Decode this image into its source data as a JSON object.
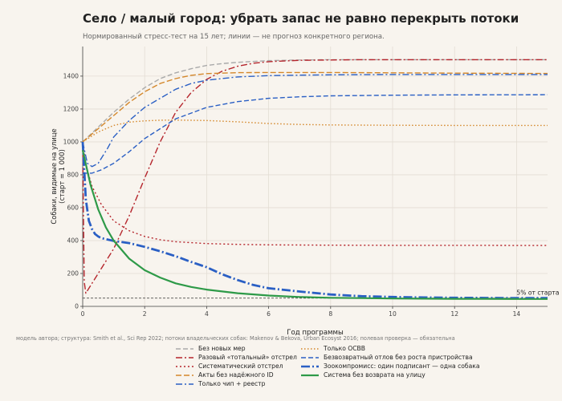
{
  "title": "Село / малый город: убрать запас не равно перекрыть потоки",
  "subtitle": "Нормированный стресс-тест на 15 лет; линии — не прогноз конкретного региона.",
  "footnote": "модель автора; структура: Smith et al., Sci Rep 2022; потоки владельческих собак: Makenov & Bekova, Urban Ecosyst 2016; полевая проверка — обязательна",
  "chart_data": {
    "type": "line",
    "xlabel": "Год программы",
    "ylabel": "Собаки, видимые на улице\n(старт = 1 000)",
    "xlim": [
      0,
      15
    ],
    "ylim": [
      0,
      1580
    ],
    "xticks": [
      0,
      2,
      4,
      6,
      8,
      10,
      12,
      14
    ],
    "yticks": [
      0,
      200,
      400,
      600,
      800,
      1000,
      1200,
      1400
    ],
    "grid": true,
    "annotations": [
      {
        "text": "5% от старта",
        "x": 14,
        "y": 50,
        "kind": "hline"
      }
    ],
    "series": [
      {
        "name": "Без новых мер",
        "color": "#aaaaaa",
        "dash": "6,3",
        "width": 1.4,
        "x": [
          0,
          0.5,
          1,
          1.5,
          2,
          2.5,
          3,
          3.5,
          4,
          4.5,
          5,
          6,
          7,
          8,
          9,
          10,
          11,
          12,
          13,
          14,
          15
        ],
        "y": [
          1000,
          1090,
          1180,
          1260,
          1330,
          1385,
          1420,
          1445,
          1465,
          1476,
          1484,
          1494,
          1498,
          1500,
          1500,
          1500,
          1500,
          1500,
          1500,
          1500,
          1500
        ]
      },
      {
        "name": "Разовый «тотальный» отстрел",
        "color": "#b5252c",
        "dash": "8,3,2,3",
        "width": 1.4,
        "x": [
          0,
          0.02,
          0.05,
          0.1,
          0.5,
          1,
          1.5,
          2,
          2.5,
          3,
          3.5,
          4,
          4.5,
          5,
          5.5,
          6,
          7,
          8,
          9,
          10,
          11,
          12,
          13,
          14,
          15
        ],
        "y": [
          1000,
          600,
          150,
          80,
          200,
          350,
          550,
          780,
          1000,
          1180,
          1300,
          1380,
          1430,
          1460,
          1478,
          1488,
          1496,
          1498,
          1500,
          1500,
          1500,
          1500,
          1500,
          1500,
          1500
        ]
      },
      {
        "name": "Систематический отстрел",
        "color": "#b5252c",
        "dash": "2,3",
        "width": 1.4,
        "x": [
          0,
          0.1,
          0.3,
          0.6,
          1,
          1.5,
          2,
          2.5,
          3,
          4,
          5,
          6,
          7,
          8,
          10,
          12,
          15
        ],
        "y": [
          1000,
          860,
          730,
          620,
          520,
          460,
          425,
          405,
          393,
          382,
          377,
          374,
          373,
          372,
          371,
          371,
          370
        ]
      },
      {
        "name": "Акты без надёжного ID",
        "color": "#d4872a",
        "dash": "7,3",
        "width": 1.4,
        "x": [
          0,
          0.5,
          1,
          1.5,
          2,
          2.5,
          3,
          3.5,
          4,
          5,
          6,
          7,
          8,
          10,
          12,
          15
        ],
        "y": [
          1000,
          1080,
          1160,
          1240,
          1305,
          1355,
          1385,
          1405,
          1415,
          1421,
          1422,
          1422,
          1422,
          1420,
          1418,
          1416
        ]
      },
      {
        "name": "Только чип + реестр",
        "color": "#2a5fc4",
        "dash": "8,3,2,3",
        "width": 1.4,
        "x": [
          0,
          0.15,
          0.3,
          0.5,
          0.8,
          1,
          1.5,
          2,
          2.5,
          3,
          3.5,
          4,
          5,
          6,
          7,
          8,
          10,
          12,
          15
        ],
        "y": [
          1000,
          870,
          850,
          870,
          960,
          1030,
          1130,
          1210,
          1265,
          1320,
          1355,
          1375,
          1395,
          1403,
          1406,
          1408,
          1410,
          1410,
          1410
        ]
      },
      {
        "name": "Только ОСВВ",
        "color": "#d4872a",
        "dash": "1.5,2.5",
        "width": 1.4,
        "x": [
          0,
          0.5,
          1,
          1.5,
          2,
          2.5,
          3,
          4,
          5,
          6,
          7,
          8,
          10,
          12,
          15
        ],
        "y": [
          1000,
          1060,
          1100,
          1120,
          1128,
          1132,
          1133,
          1130,
          1122,
          1112,
          1106,
          1103,
          1101,
          1100,
          1100
        ]
      },
      {
        "name": "Безвозвратный отлов без роста пристройства",
        "color": "#2a5fc4",
        "dash": "6,3",
        "width": 1.4,
        "x": [
          0,
          0.3,
          0.6,
          1,
          1.5,
          2,
          2.5,
          3,
          4,
          5,
          6,
          7,
          8,
          10,
          12,
          15
        ],
        "y": [
          810,
          810,
          830,
          870,
          940,
          1020,
          1080,
          1140,
          1210,
          1245,
          1265,
          1274,
          1280,
          1284,
          1286,
          1287
        ]
      },
      {
        "name": "Зоокомпромисс: один подписант — одна собака",
        "color": "#2a5fc4",
        "dash": "11,3,2,3",
        "width": 2.8,
        "x": [
          0,
          0.1,
          0.2,
          0.3,
          0.4,
          0.5,
          0.6,
          1,
          1.5,
          2,
          2.5,
          3,
          3.5,
          4,
          4.5,
          5,
          5.5,
          6,
          7,
          8,
          9,
          10,
          11,
          12,
          13,
          14,
          15
        ],
        "y": [
          1000,
          650,
          520,
          470,
          440,
          425,
          415,
          398,
          385,
          362,
          335,
          305,
          270,
          238,
          195,
          160,
          130,
          110,
          90,
          72,
          62,
          57,
          54,
          52,
          51,
          50,
          50
        ]
      },
      {
        "name": "Система без возврата на улицу",
        "color": "#2e9a48",
        "dash": "",
        "width": 2.2,
        "x": [
          0,
          0.25,
          0.5,
          0.75,
          1,
          1.5,
          2,
          2.5,
          3,
          3.5,
          4,
          5,
          6,
          7,
          8,
          9,
          10,
          11,
          12,
          13,
          14,
          15
        ],
        "y": [
          950,
          740,
          590,
          480,
          400,
          290,
          220,
          175,
          140,
          118,
          102,
          80,
          66,
          57,
          52,
          50,
          48,
          47,
          46,
          46,
          45,
          45
        ]
      }
    ]
  }
}
